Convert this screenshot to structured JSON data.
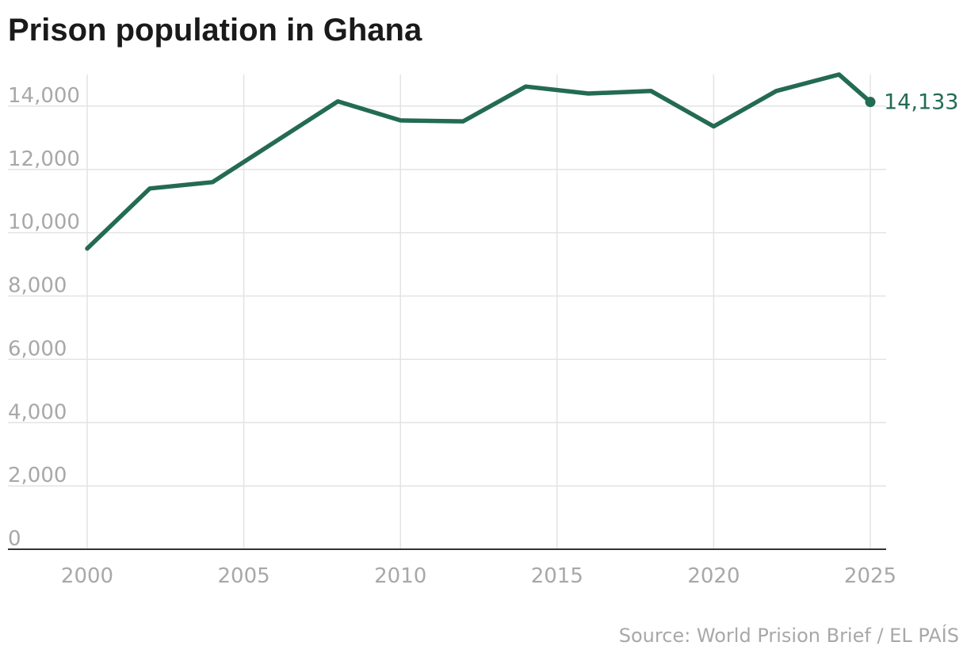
{
  "colors": {
    "line": "#236b52",
    "grid": "#e3e3e3",
    "axis": "#333333",
    "tick_text": "#a8a8a8",
    "title": "#1a1a1a"
  },
  "source": "Source: World Prision Brief / EL PAÍS",
  "chart_data": {
    "type": "line",
    "title": "Prison population in Ghana",
    "xlabel": "",
    "ylabel": "",
    "xlim": [
      2000,
      2025
    ],
    "ylim": [
      0,
      15000
    ],
    "y_ticks": [
      0,
      2000,
      4000,
      6000,
      8000,
      10000,
      12000,
      14000
    ],
    "y_tick_labels": [
      "0",
      "2,000",
      "4,000",
      "6,000",
      "8,000",
      "10,000",
      "12,000",
      "14,000"
    ],
    "x_ticks": [
      2000,
      2005,
      2010,
      2015,
      2020,
      2025
    ],
    "x_tick_labels": [
      "2000",
      "2005",
      "2010",
      "2015",
      "2020",
      "2025"
    ],
    "grid": true,
    "series": [
      {
        "x": [
          2000,
          2002,
          2004,
          2008,
          2010,
          2012,
          2014,
          2016,
          2018,
          2020,
          2022,
          2024,
          2025
        ],
        "values": [
          9500,
          11400,
          11600,
          14150,
          13550,
          13520,
          14620,
          14400,
          14480,
          13360,
          14480,
          15000,
          14133
        ],
        "end_label": "14,133"
      }
    ]
  }
}
